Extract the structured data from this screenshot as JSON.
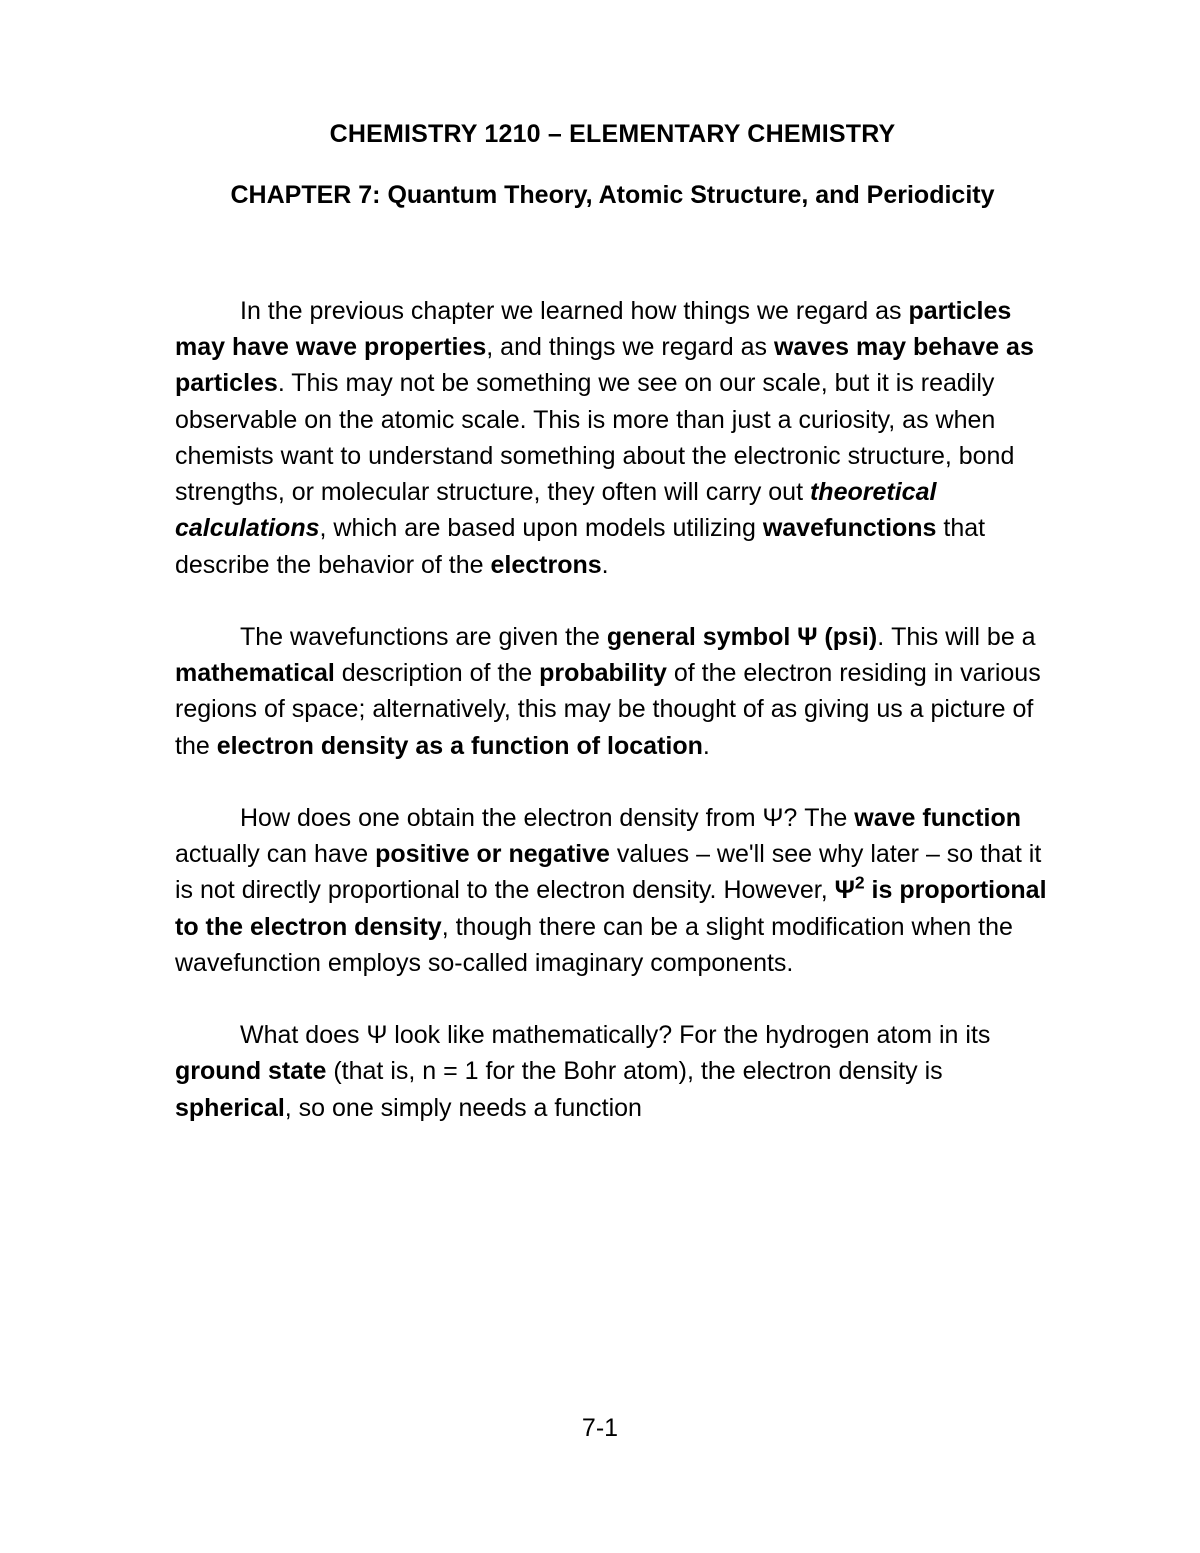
{
  "typography": {
    "font_family": "Arial, Helvetica, sans-serif",
    "title_fontsize_pt": 19,
    "body_fontsize_pt": 19,
    "line_height": 1.45,
    "text_color": "#000000",
    "background_color": "#ffffff"
  },
  "course_title": "CHEMISTRY 1210 – ELEMENTARY CHEMISTRY",
  "chapter_title": "CHAPTER 7:  Quantum Theory, Atomic Structure, and Periodicity",
  "paragraphs": [
    {
      "runs": [
        {
          "t": "In the previous chapter we learned how things we regard as ",
          "s": "normal"
        },
        {
          "t": "particles may have wave properties",
          "s": "bold"
        },
        {
          "t": ", and things we regard as ",
          "s": "normal"
        },
        {
          "t": "waves may behave as particles",
          "s": "bold"
        },
        {
          "t": ".  This may not be something we see on our scale, but it is readily observable on the atomic scale.  This is more than just a curiosity, as when chemists want to understand something about the electronic structure, bond strengths, or molecular structure, they often will carry out ",
          "s": "normal"
        },
        {
          "t": "theoretical calculations",
          "s": "bolditalic"
        },
        {
          "t": ", which are based upon models utilizing ",
          "s": "normal"
        },
        {
          "t": "wavefunctions",
          "s": "bold"
        },
        {
          "t": " that describe the behavior of the ",
          "s": "normal"
        },
        {
          "t": "electrons",
          "s": "bold"
        },
        {
          "t": ".",
          "s": "normal"
        }
      ]
    },
    {
      "runs": [
        {
          "t": "The wavefunctions are given the ",
          "s": "normal"
        },
        {
          "t": "general symbol Ψ (psi)",
          "s": "bold"
        },
        {
          "t": ".  This will be a ",
          "s": "normal"
        },
        {
          "t": "mathematical",
          "s": "bold"
        },
        {
          "t": " description of the ",
          "s": "normal"
        },
        {
          "t": "probability",
          "s": "bold"
        },
        {
          "t": " of the electron residing in various regions of space; alternatively, this may be thought of as giving us a picture of the ",
          "s": "normal"
        },
        {
          "t": "electron density as a function of location",
          "s": "bold"
        },
        {
          "t": ".",
          "s": "normal"
        }
      ]
    },
    {
      "runs": [
        {
          "t": "How does one obtain the electron density from Ψ?  The ",
          "s": "normal"
        },
        {
          "t": "wave function",
          "s": "bold"
        },
        {
          "t": " actually can have ",
          "s": "normal"
        },
        {
          "t": "positive or negative",
          "s": "bold"
        },
        {
          "t": " values – we'll see why later – so that it is not directly proportional to the electron density.  However, ",
          "s": "normal"
        },
        {
          "t": "Ψ",
          "s": "bold"
        },
        {
          "t": "2",
          "s": "bold-sup"
        },
        {
          "t": " is proportional to the electron density",
          "s": "bold"
        },
        {
          "t": ", though there can be a slight modification when the wavefunction employs so-called imaginary components.",
          "s": "normal"
        }
      ]
    },
    {
      "runs": [
        {
          "t": "What does Ψ look like mathematically?  For the hydrogen atom in its ",
          "s": "normal"
        },
        {
          "t": "ground state",
          "s": "bold"
        },
        {
          "t": " (that is, n = 1 for the Bohr atom), the electron density is ",
          "s": "normal"
        },
        {
          "t": "spherical",
          "s": "bold"
        },
        {
          "t": ", so one simply needs a function",
          "s": "normal"
        }
      ]
    }
  ],
  "page_number": "7-1"
}
